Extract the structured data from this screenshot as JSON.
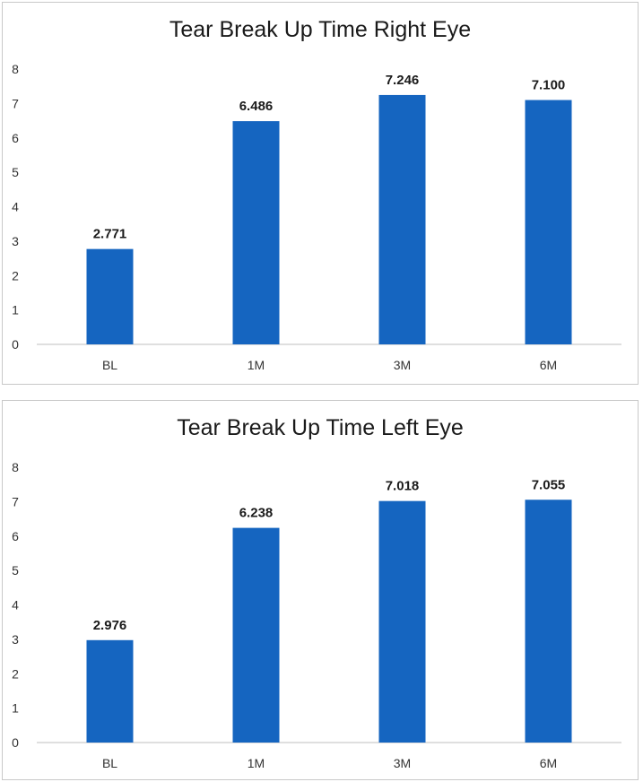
{
  "chart_data": [
    {
      "type": "bar",
      "title": "Tear Break Up Time Right Eye",
      "categories": [
        "BL",
        "1M",
        "3M",
        "6M"
      ],
      "values": [
        2.771,
        6.486,
        7.246,
        7.1
      ],
      "data_labels": [
        "2.771",
        "6.486",
        "7.246",
        "7.100"
      ],
      "ylim": [
        0,
        8
      ],
      "yticks": [
        "0",
        "1",
        "2",
        "3",
        "4",
        "5",
        "6",
        "7",
        "8"
      ],
      "grid": false,
      "bar_color": "#1565c0"
    },
    {
      "type": "bar",
      "title": "Tear Break Up Time Left Eye",
      "categories": [
        "BL",
        "1M",
        "3M",
        "6M"
      ],
      "values": [
        2.976,
        6.238,
        7.018,
        7.055
      ],
      "data_labels": [
        "2.976",
        "6.238",
        "7.018",
        "7.055"
      ],
      "ylim": [
        0,
        8
      ],
      "yticks": [
        "0",
        "1",
        "2",
        "3",
        "4",
        "5",
        "6",
        "7",
        "8"
      ],
      "grid": false,
      "bar_color": "#1565c0"
    }
  ]
}
